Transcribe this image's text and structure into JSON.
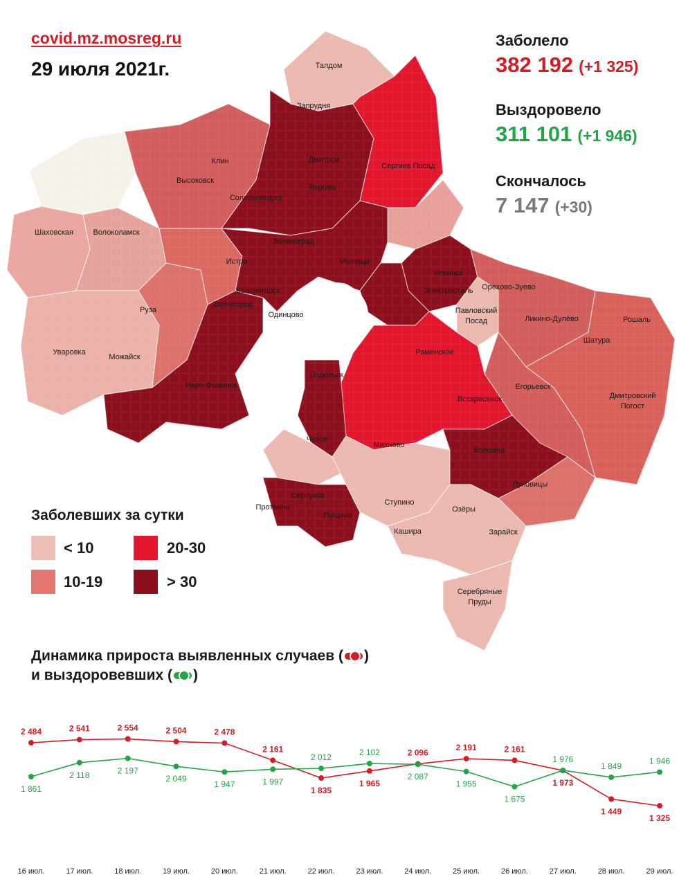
{
  "source": "covid.mz.mosreg.ru",
  "date": "29 июля 2021г.",
  "stats": {
    "infected": {
      "label": "Заболело",
      "value": "382 192",
      "delta": "(+1 325)",
      "color": "#d21d24"
    },
    "recovered": {
      "label": "Выздоровело",
      "value": "311 101",
      "delta": "(+1 946)",
      "color": "#23a447"
    },
    "deaths": {
      "label": "Скончалось",
      "value": "7 147",
      "delta": "(+30)",
      "color": "#7a7a7a"
    }
  },
  "legend": {
    "title": "Заболевших за сутки",
    "items": [
      {
        "label": "< 10",
        "color": "#efc0b8"
      },
      {
        "label": "10-19",
        "color": "#e37671"
      },
      {
        "label": "20-30",
        "color": "#e2172e"
      },
      {
        "label": "> 30",
        "color": "#8b0f1c"
      }
    ]
  },
  "places": [
    "Талдом",
    "Запрудня",
    "Дмитров",
    "Яхрома",
    "Сергиев Посад",
    "Клин",
    "Высоковск",
    "Солнечногорск",
    "Шаховская",
    "Волоколамск",
    "Зеленоград",
    "Мытищи",
    "Истра",
    "Красногорск",
    "Ногинск",
    "Электросталь",
    "Орехово-Зуево",
    "Звенигород",
    "Одинцово",
    "Павловский Посад",
    "Ликино-Дулёво",
    "Рошаль",
    "Руза",
    "Раменское",
    "Шатура",
    "Уваровка",
    "Можайск",
    "Наро-Фоминск",
    "Егорьевск",
    "Дмитровский Погост",
    "Подольск",
    "Воскресенск",
    "Чехов",
    "Михнево",
    "Коломна",
    "Серпухов",
    "Протвино",
    "Пущино",
    "Ступино",
    "Озёры",
    "Луховицы",
    "Кашира",
    "Зарайск",
    "Серебряные Пруды"
  ],
  "dynamics": {
    "title_line1": "Динамика прироста выявленных случаев (",
    "title_line1_end": ")",
    "title_line2": "и выздоровевших (",
    "title_line2_end": ")"
  },
  "chart_data": {
    "type": "line",
    "categories": [
      "16 июл.",
      "17 июл.",
      "18 июл.",
      "19 июл.",
      "20 июл.",
      "21 июл.",
      "22 июл.",
      "23 июл.",
      "24 июл.",
      "25 июл.",
      "26 июл.",
      "27 июл.",
      "28 июл.",
      "29 июл."
    ],
    "series": [
      {
        "key": "cases",
        "color": "#d21d24",
        "values": [
          2484,
          2541,
          2554,
          2504,
          2478,
          2161,
          1835,
          1965,
          2096,
          2191,
          2161,
          1973,
          1449,
          1325
        ],
        "labels": [
          "2 484",
          "2 541",
          "2 554",
          "2 504",
          "2 478",
          "2 161",
          "1 835",
          "1 965",
          "2 096",
          "2 191",
          "2 161",
          "1 973",
          "1 449",
          "1 325"
        ]
      },
      {
        "key": "recovered",
        "color": "#23a447",
        "values": [
          1861,
          2118,
          2197,
          2049,
          1947,
          1997,
          2012,
          2102,
          2087,
          1955,
          1675,
          1976,
          1849,
          1946
        ],
        "labels": [
          "1 861",
          "2 118",
          "2 197",
          "2 049",
          "1 947",
          "1 997",
          "2 012",
          "2 102",
          "2 087",
          "1 955",
          "1 675",
          "1 976",
          "1 849",
          "1 946"
        ]
      }
    ],
    "grid": false
  }
}
